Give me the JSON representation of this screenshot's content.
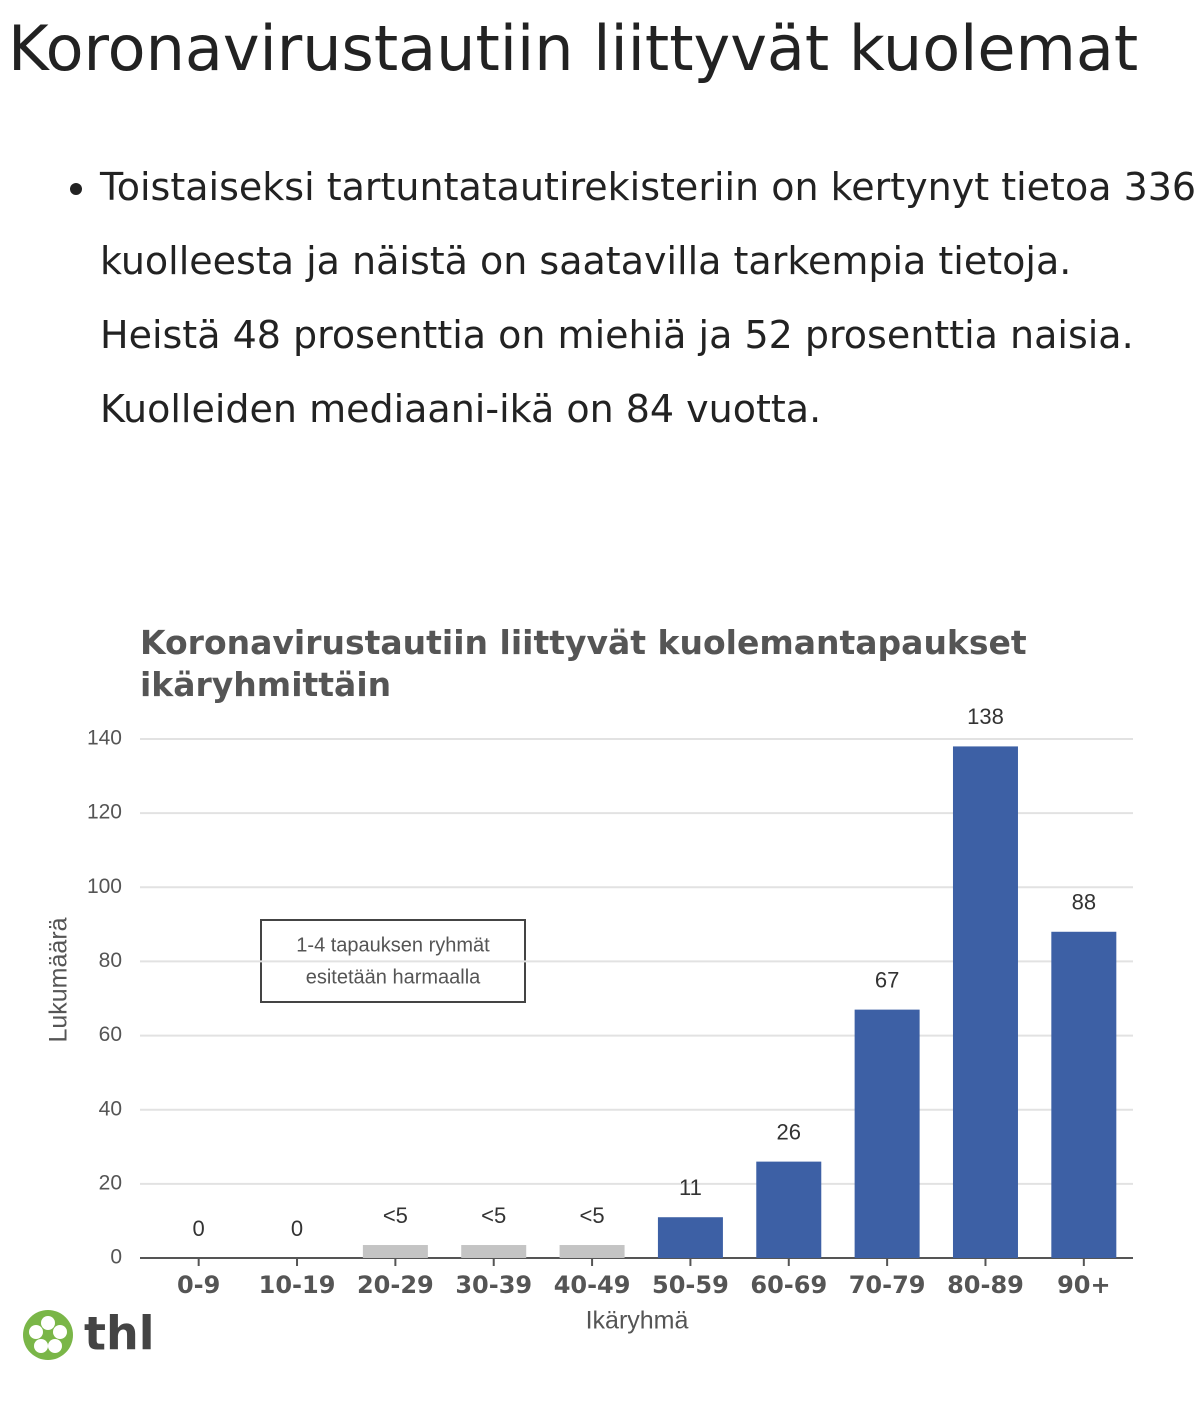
{
  "header": {
    "title": "Koronavirustautiin liittyvät kuolemat"
  },
  "bullet": "Toistaiseksi tartuntatautirekisteriin on kertynyt tietoa 336 kuolleesta ja näistä on saatavilla tarkempia tietoja. Heistä 48 prosenttia on miehiä ja 52 prosenttia naisia. Kuolleiden mediaani-ikä on 84 vuotta.",
  "logo": "thl",
  "chart_data": {
    "type": "bar",
    "title": "Koronavirustautiin liittyvät kuolemantapaukset ikäryhmittäin",
    "x_label": "Ikäryhmä",
    "y_label": "Lukumäärä",
    "annotation": [
      "1-4 tapauksen ryhmät",
      "esitetään harmaalla"
    ],
    "categories": [
      "0-9",
      "10-19",
      "20-29",
      "30-39",
      "40-49",
      "50-59",
      "60-69",
      "70-79",
      "80-89",
      "90+"
    ],
    "values": [
      0,
      0,
      3.5,
      3.5,
      3.5,
      11,
      26,
      67,
      138,
      88
    ],
    "value_labels": [
      "0",
      "0",
      "<5",
      "<5",
      "<5",
      "11",
      "26",
      "67",
      "138",
      "88"
    ],
    "colors": [
      "#3d60a5",
      "#3d60a5",
      "#c4c4c4",
      "#c4c4c4",
      "#c4c4c4",
      "#3d60a5",
      "#3d60a5",
      "#3d60a5",
      "#3d60a5",
      "#3d60a5"
    ],
    "ylim": [
      0,
      140
    ],
    "yticks": [
      0,
      20,
      40,
      60,
      80,
      100,
      120,
      140
    ],
    "grid": true
  }
}
